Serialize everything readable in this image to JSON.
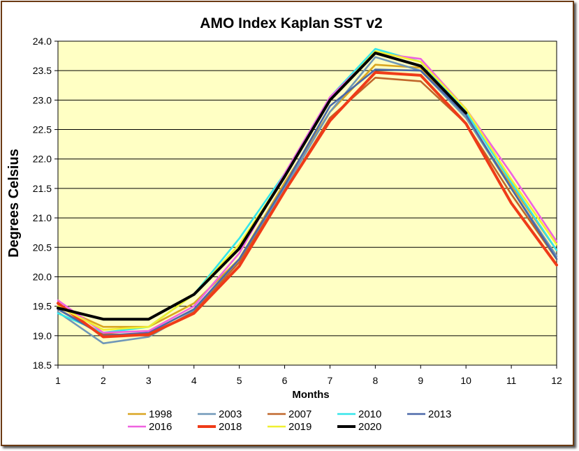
{
  "chart_data": {
    "type": "line",
    "title": "AMO Index Kaplan SST v2",
    "xlabel": "Months",
    "ylabel": "Degrees Celsius",
    "x": [
      1,
      2,
      3,
      4,
      5,
      6,
      7,
      8,
      9,
      10,
      11,
      12
    ],
    "xlim": [
      1,
      12
    ],
    "ylim": [
      18.5,
      24.0
    ],
    "yticks": [
      "18.5",
      "19.0",
      "19.5",
      "20.0",
      "20.5",
      "21.0",
      "21.5",
      "22.0",
      "22.5",
      "23.0",
      "23.5",
      "24.0"
    ],
    "xticks": [
      "1",
      "2",
      "3",
      "4",
      "5",
      "6",
      "7",
      "8",
      "9",
      "10",
      "11",
      "12"
    ],
    "grid": true,
    "legend_position": "bottom",
    "plot_background": "#ffffc4",
    "series": [
      {
        "name": "1998",
        "color": "#d9a520",
        "values": [
          19.5,
          19.15,
          19.15,
          19.55,
          20.3,
          21.6,
          22.8,
          23.6,
          23.55,
          22.7,
          21.55,
          20.45
        ]
      },
      {
        "name": "2003",
        "color": "#6f97b8",
        "values": [
          19.4,
          18.87,
          18.98,
          19.42,
          20.25,
          21.5,
          22.8,
          23.73,
          23.5,
          22.7,
          21.5,
          20.35
        ]
      },
      {
        "name": "2007",
        "color": "#c0662a",
        "values": [
          19.45,
          19.03,
          19.0,
          19.4,
          20.25,
          21.45,
          22.7,
          23.38,
          23.32,
          22.6,
          21.4,
          20.3
        ]
      },
      {
        "name": "2010",
        "color": "#33e6ea",
        "values": [
          19.38,
          19.05,
          19.15,
          19.7,
          20.65,
          21.75,
          23.05,
          23.87,
          23.65,
          22.8,
          21.6,
          20.45
        ]
      },
      {
        "name": "2013",
        "color": "#4a68a8",
        "values": [
          19.45,
          19.0,
          19.05,
          19.45,
          20.3,
          21.55,
          22.9,
          23.52,
          23.5,
          22.75,
          21.5,
          20.3
        ]
      },
      {
        "name": "2016",
        "color": "#ef62e0",
        "values": [
          19.6,
          19.05,
          19.08,
          19.5,
          20.4,
          21.75,
          23.05,
          23.8,
          23.7,
          22.85,
          21.75,
          20.6
        ]
      },
      {
        "name": "2018",
        "color": "#ef3b18",
        "values": [
          19.55,
          18.98,
          19.02,
          19.38,
          20.18,
          21.45,
          22.65,
          23.47,
          23.42,
          22.6,
          21.25,
          20.2
        ]
      },
      {
        "name": "2019",
        "color": "#f0f030",
        "values": [
          19.5,
          19.1,
          19.15,
          19.7,
          20.55,
          21.7,
          23.0,
          23.83,
          23.65,
          22.85,
          21.65,
          20.55
        ]
      },
      {
        "name": "2020",
        "color": "#000000",
        "values": [
          19.47,
          19.28,
          19.28,
          19.7,
          20.48,
          21.7,
          23.0,
          23.8,
          23.58,
          22.78,
          null,
          null
        ]
      }
    ]
  }
}
